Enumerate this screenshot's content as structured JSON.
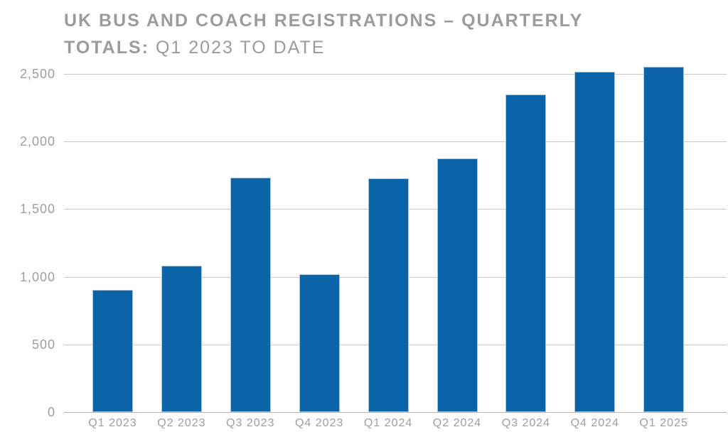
{
  "title": {
    "line1_bold": "UK BUS AND COACH REGISTRATIONS – QUARTERLY",
    "line2_bold": "TOTALS:",
    "line2_regular": "Q1 2023 TO DATE"
  },
  "colors": {
    "bar": "#0b64a8",
    "bar_edge": "#a5c6de",
    "gridline": "#c9c9c9",
    "axis_line": "#b5b5b5",
    "title_text": "#9b9b9b",
    "tick_text": "#9e9e9e",
    "background": "#ffffff"
  },
  "chart_data": {
    "type": "bar",
    "title": "UK BUS AND COACH REGISTRATIONS – QUARTERLY TOTALS: Q1 2023 TO DATE",
    "categories": [
      "Q1 2023",
      "Q2 2023",
      "Q3 2023",
      "Q4 2023",
      "Q1 2024",
      "Q2 2024",
      "Q3 2024",
      "Q4 2024",
      "Q1 2025"
    ],
    "values": [
      905,
      1080,
      1735,
      1020,
      1730,
      1875,
      2350,
      2515,
      2555
    ],
    "xlabel": "",
    "ylabel": "",
    "ylim": [
      0,
      2500
    ],
    "yticks": [
      0,
      500,
      1000,
      1500,
      2000,
      2500
    ],
    "ytick_labels": [
      "0",
      "500",
      "1,000",
      "1,500",
      "2,000",
      "2,500"
    ],
    "grid": true,
    "legend": false,
    "bar_color": "#0b64a8"
  }
}
